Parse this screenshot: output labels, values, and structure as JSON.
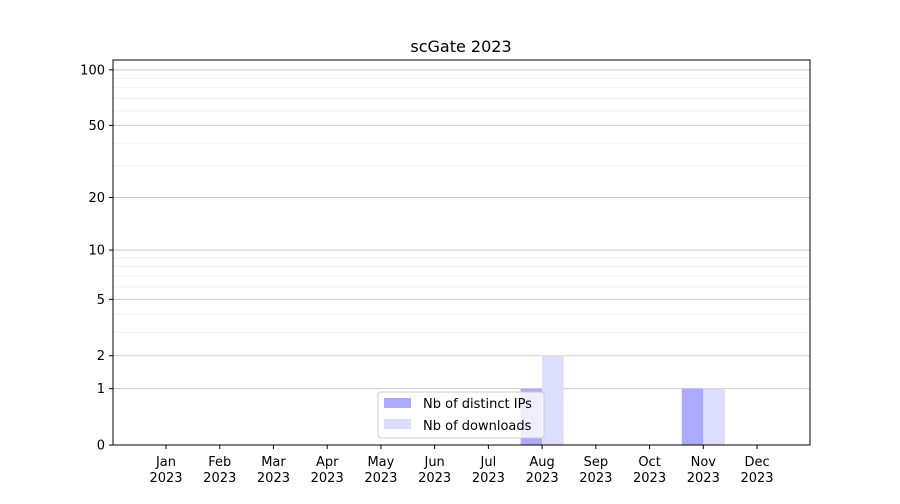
{
  "chart_data": {
    "type": "bar",
    "title": "scGate 2023",
    "xlabel": "",
    "ylabel": "",
    "y_scale": "log10(1+y)",
    "ylim": [
      0,
      113
    ],
    "y_ticks": [
      0,
      1,
      2,
      5,
      10,
      20,
      50,
      100
    ],
    "y_minor_grid": [
      3,
      4,
      6,
      7,
      8,
      9,
      30,
      40,
      60,
      70,
      80,
      90
    ],
    "grid": true,
    "categories": [
      "Jan\n2023",
      "Feb\n2023",
      "Mar\n2023",
      "Apr\n2023",
      "May\n2023",
      "Jun\n2023",
      "Jul\n2023",
      "Aug\n2023",
      "Sep\n2023",
      "Oct\n2023",
      "Nov\n2023",
      "Dec\n2023"
    ],
    "category_lines": [
      [
        "Jan",
        "2023"
      ],
      [
        "Feb",
        "2023"
      ],
      [
        "Mar",
        "2023"
      ],
      [
        "Apr",
        "2023"
      ],
      [
        "May",
        "2023"
      ],
      [
        "Jun",
        "2023"
      ],
      [
        "Jul",
        "2023"
      ],
      [
        "Aug",
        "2023"
      ],
      [
        "Sep",
        "2023"
      ],
      [
        "Oct",
        "2023"
      ],
      [
        "Nov",
        "2023"
      ],
      [
        "Dec",
        "2023"
      ]
    ],
    "series": [
      {
        "name": "Nb of distinct IPs",
        "color": "#aaaaff",
        "values": [
          0,
          0,
          0,
          0,
          0,
          0,
          0,
          1,
          0,
          0,
          1,
          0
        ]
      },
      {
        "name": "Nb of downloads",
        "color": "#ddddff",
        "values": [
          0,
          0,
          0,
          0,
          0,
          0,
          0,
          2,
          0,
          0,
          1,
          0
        ]
      }
    ],
    "legend_position": "lower-center"
  }
}
